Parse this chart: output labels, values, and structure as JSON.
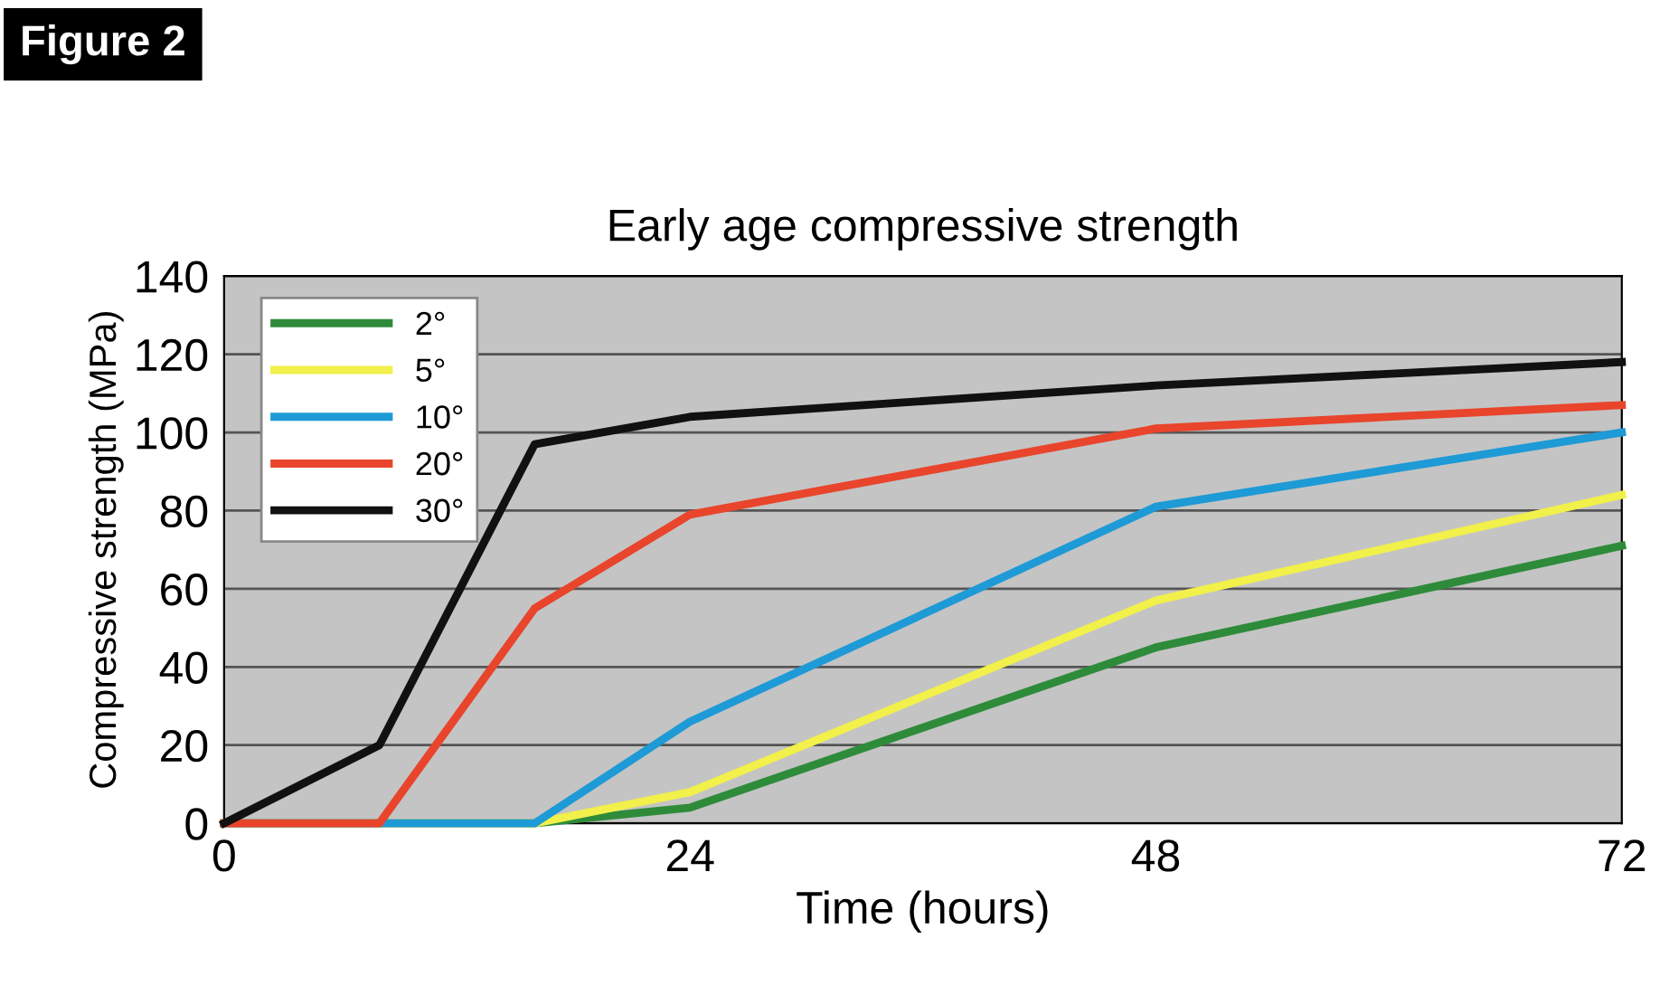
{
  "chart_data": {
    "type": "line",
    "title": "Early age compressive strength",
    "xlabel": "Time (hours)",
    "ylabel": "Compressive strength (MPa)",
    "annotations": [
      "Figure 2"
    ],
    "series": [
      {
        "name": "2°",
        "color": "#2e8b3a",
        "x": [
          0,
          8,
          16,
          24,
          48,
          72
        ],
        "values": [
          0,
          0,
          0,
          4,
          45,
          71
        ]
      },
      {
        "name": "5°",
        "color": "#f2f04a",
        "x": [
          0,
          8,
          16,
          24,
          48,
          72
        ],
        "values": [
          0,
          0,
          0,
          8,
          57,
          84
        ]
      },
      {
        "name": "10°",
        "color": "#1e9ad6",
        "x": [
          0,
          8,
          16,
          24,
          48,
          72
        ],
        "values": [
          0,
          0,
          0,
          26,
          81,
          100
        ]
      },
      {
        "name": "20°",
        "color": "#e8452c",
        "x": [
          0,
          8,
          16,
          24,
          48,
          72
        ],
        "values": [
          0,
          0,
          55,
          79,
          101,
          107
        ]
      },
      {
        "name": "30°",
        "color": "#111111",
        "x": [
          0,
          8,
          16,
          24,
          48,
          72
        ],
        "values": [
          0,
          20,
          97,
          104,
          112,
          118
        ]
      }
    ],
    "xlim": [
      0,
      72
    ],
    "xticks": [
      0,
      24,
      48,
      72
    ],
    "ylim": [
      0,
      140
    ],
    "yticks": [
      0,
      20,
      40,
      60,
      80,
      100,
      120,
      140
    ],
    "grid": "y",
    "legend": "top left",
    "marker": "none",
    "line_style": "solid"
  }
}
